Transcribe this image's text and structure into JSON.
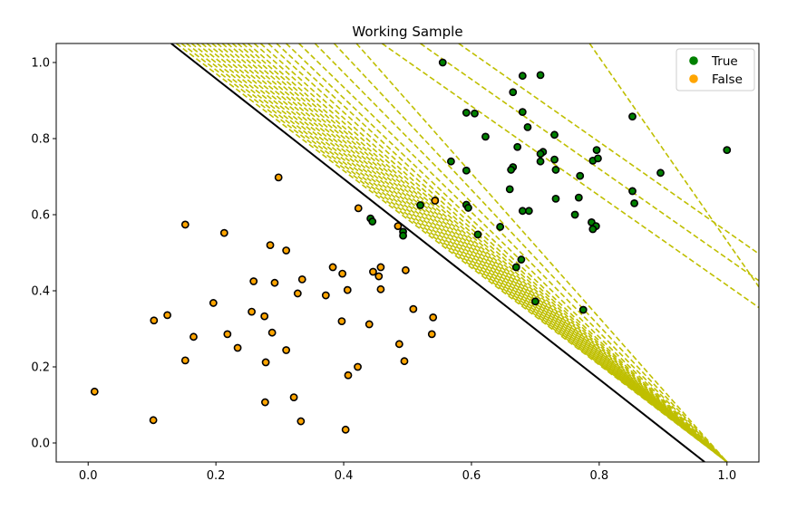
{
  "chart_data": {
    "type": "scatter",
    "title": "Working Sample",
    "xlabel": "",
    "ylabel": "",
    "xlim": [
      -0.05,
      1.05
    ],
    "ylim": [
      -0.05,
      1.05
    ],
    "x_ticks": [
      0.0,
      0.2,
      0.4,
      0.6,
      0.8,
      1.0
    ],
    "y_ticks": [
      0.0,
      0.2,
      0.4,
      0.6,
      0.8,
      1.0
    ],
    "x_tick_labels": [
      "0.0",
      "0.2",
      "0.4",
      "0.6",
      "0.8",
      "1.0"
    ],
    "y_tick_labels": [
      "0.0",
      "0.2",
      "0.4",
      "0.6",
      "0.8",
      "1.0"
    ],
    "grid": false,
    "legend_position": "top-right",
    "edge_color": "#000000",
    "series": [
      {
        "name": "True",
        "color": "#008000",
        "points": [
          [
            0.555,
            1.0
          ],
          [
            0.68,
            0.965
          ],
          [
            0.708,
            0.967
          ],
          [
            0.665,
            0.922
          ],
          [
            0.592,
            0.868
          ],
          [
            0.605,
            0.866
          ],
          [
            0.68,
            0.87
          ],
          [
            0.688,
            0.83
          ],
          [
            0.622,
            0.805
          ],
          [
            0.73,
            0.81
          ],
          [
            0.672,
            0.778
          ],
          [
            0.712,
            0.765
          ],
          [
            0.708,
            0.76
          ],
          [
            0.796,
            0.77
          ],
          [
            0.568,
            0.74
          ],
          [
            0.708,
            0.74
          ],
          [
            0.73,
            0.745
          ],
          [
            0.79,
            0.742
          ],
          [
            0.798,
            0.748
          ],
          [
            0.665,
            0.725
          ],
          [
            0.662,
            0.718
          ],
          [
            0.592,
            0.716
          ],
          [
            0.732,
            0.718
          ],
          [
            0.77,
            0.702
          ],
          [
            0.896,
            0.71
          ],
          [
            1.0,
            0.77
          ],
          [
            0.852,
            0.858
          ],
          [
            0.66,
            0.667
          ],
          [
            0.852,
            0.662
          ],
          [
            0.732,
            0.642
          ],
          [
            0.768,
            0.645
          ],
          [
            0.855,
            0.63
          ],
          [
            0.592,
            0.626
          ],
          [
            0.595,
            0.618
          ],
          [
            0.68,
            0.61
          ],
          [
            0.69,
            0.61
          ],
          [
            0.762,
            0.6
          ],
          [
            0.788,
            0.58
          ],
          [
            0.795,
            0.57
          ],
          [
            0.79,
            0.562
          ],
          [
            0.645,
            0.568
          ],
          [
            0.61,
            0.548
          ],
          [
            0.678,
            0.482
          ],
          [
            0.67,
            0.462
          ],
          [
            0.775,
            0.35
          ],
          [
            0.7,
            0.372
          ],
          [
            0.52,
            0.625
          ],
          [
            0.442,
            0.59
          ],
          [
            0.445,
            0.582
          ],
          [
            0.493,
            0.555
          ],
          [
            0.493,
            0.545
          ]
        ]
      },
      {
        "name": "False",
        "color": "#ffa500",
        "points": [
          [
            0.298,
            0.698
          ],
          [
            0.423,
            0.617
          ],
          [
            0.543,
            0.637
          ],
          [
            0.152,
            0.574
          ],
          [
            0.213,
            0.552
          ],
          [
            0.285,
            0.52
          ],
          [
            0.31,
            0.506
          ],
          [
            0.485,
            0.57
          ],
          [
            0.383,
            0.462
          ],
          [
            0.398,
            0.445
          ],
          [
            0.446,
            0.45
          ],
          [
            0.455,
            0.438
          ],
          [
            0.458,
            0.462
          ],
          [
            0.497,
            0.454
          ],
          [
            0.335,
            0.43
          ],
          [
            0.259,
            0.425
          ],
          [
            0.292,
            0.421
          ],
          [
            0.406,
            0.402
          ],
          [
            0.458,
            0.404
          ],
          [
            0.328,
            0.393
          ],
          [
            0.372,
            0.388
          ],
          [
            0.196,
            0.368
          ],
          [
            0.509,
            0.352
          ],
          [
            0.256,
            0.345
          ],
          [
            0.276,
            0.333
          ],
          [
            0.124,
            0.336
          ],
          [
            0.103,
            0.322
          ],
          [
            0.397,
            0.32
          ],
          [
            0.54,
            0.33
          ],
          [
            0.44,
            0.312
          ],
          [
            0.288,
            0.29
          ],
          [
            0.218,
            0.286
          ],
          [
            0.165,
            0.279
          ],
          [
            0.538,
            0.286
          ],
          [
            0.487,
            0.26
          ],
          [
            0.234,
            0.25
          ],
          [
            0.31,
            0.244
          ],
          [
            0.152,
            0.217
          ],
          [
            0.278,
            0.212
          ],
          [
            0.495,
            0.215
          ],
          [
            0.422,
            0.2
          ],
          [
            0.407,
            0.178
          ],
          [
            0.322,
            0.12
          ],
          [
            0.277,
            0.107
          ],
          [
            0.01,
            0.135
          ],
          [
            0.102,
            0.06
          ],
          [
            0.333,
            0.057
          ],
          [
            0.403,
            0.035
          ]
        ]
      }
    ],
    "solid_line": {
      "color": "#000000",
      "x_at_top": 0.13,
      "x_at_bottom": 0.965
    },
    "dashed_lines": {
      "color": "#bfbf00",
      "pivot": [
        1.0,
        -0.05
      ],
      "fan_x_at_top": [
        0.138,
        0.146,
        0.154,
        0.162,
        0.17,
        0.178,
        0.186,
        0.194,
        0.202,
        0.21,
        0.218,
        0.226,
        0.234,
        0.242,
        0.25,
        0.26,
        0.27,
        0.282,
        0.295,
        0.31,
        0.33,
        0.355,
        0.385,
        0.42
      ],
      "parallel_x_at_top": [
        0.46,
        0.52,
        0.58
      ],
      "far": {
        "x_at_top": 0.785,
        "y_at_right": 0.41
      }
    }
  }
}
